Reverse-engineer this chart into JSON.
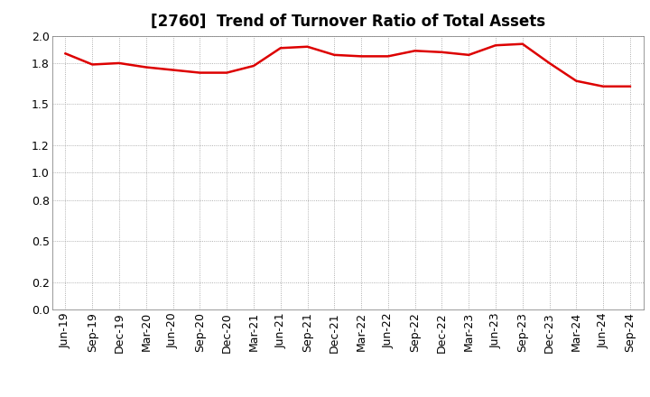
{
  "title": "[2760]  Trend of Turnover Ratio of Total Assets",
  "x_labels": [
    "Jun-19",
    "Sep-19",
    "Dec-19",
    "Mar-20",
    "Jun-20",
    "Sep-20",
    "Dec-20",
    "Mar-21",
    "Jun-21",
    "Sep-21",
    "Dec-21",
    "Mar-22",
    "Jun-22",
    "Sep-22",
    "Dec-22",
    "Mar-23",
    "Jun-23",
    "Sep-23",
    "Dec-23",
    "Mar-24",
    "Jun-24",
    "Sep-24"
  ],
  "y_values": [
    1.87,
    1.79,
    1.8,
    1.77,
    1.75,
    1.73,
    1.73,
    1.78,
    1.91,
    1.92,
    1.86,
    1.85,
    1.85,
    1.89,
    1.88,
    1.86,
    1.93,
    1.94,
    1.8,
    1.67,
    1.63,
    1.63
  ],
  "ylim": [
    0.0,
    2.0
  ],
  "yticks": [
    0.0,
    0.2,
    0.5,
    0.8,
    1.0,
    1.2,
    1.5,
    1.8,
    2.0
  ],
  "line_color": "#dd0000",
  "line_width": 1.8,
  "background_color": "#ffffff",
  "grid_color": "#999999",
  "title_fontsize": 12,
  "tick_fontsize": 9
}
